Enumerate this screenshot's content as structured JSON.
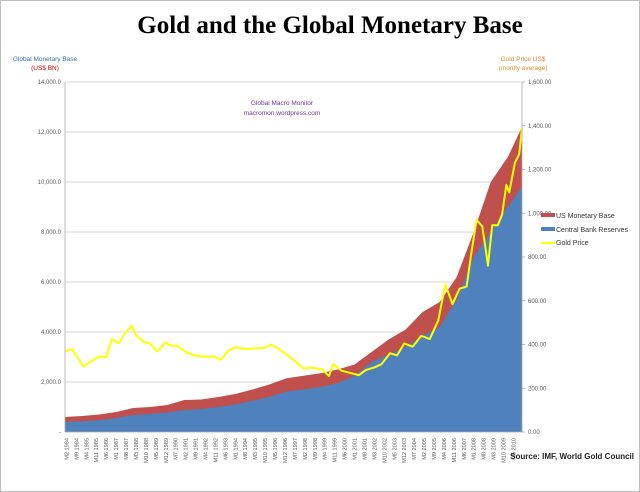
{
  "chart_data": {
    "type": "area",
    "title": "Gold and the Global Monetary Base",
    "watermark": [
      "Global Macro Monitor",
      "macromon.wordpress.com"
    ],
    "ylabel_left": [
      "Global Monetary Base",
      "(US$ BN)"
    ],
    "ylabel_right": [
      "Gold Price US$",
      "(montly average)"
    ],
    "ylim_left": [
      0,
      14000
    ],
    "ylim_right": [
      0,
      1600
    ],
    "y_ticks_left": [
      "-",
      "2,000.0",
      "4,000.0",
      "6,000.0",
      "8,000.0",
      "10,000.0",
      "12,000.0",
      "14,000.0"
    ],
    "y_ticks_right": [
      "0.00",
      "200.00",
      "400.00",
      "600.00",
      "800.00",
      "1,000.00",
      "1,200.00",
      "1,400.00",
      "1,600.00"
    ],
    "x_range": [
      "1984-01",
      "2010-11"
    ],
    "x_tick_labels": [
      "M2 1984",
      "M9 1984",
      "M4 1985",
      "M11 1985",
      "M6 1986",
      "M1 1987",
      "M8 1987",
      "M3 1988",
      "M10 1988",
      "M5 1989",
      "M12 1989",
      "M7 1990",
      "M2 1991",
      "M9 1991",
      "M4 1992",
      "M11 1992",
      "M6 1993",
      "M1 1994",
      "M8 1994",
      "M3 1995",
      "M10 1995",
      "M5 1996",
      "M12 1996",
      "M7 1997",
      "M2 1998",
      "M9 1998",
      "M4 1999",
      "M11 1999",
      "M6 2000",
      "M1 2001",
      "M8 2001",
      "M3 2002",
      "M10 2002",
      "M5 2003",
      "M12 2003",
      "M7 2004",
      "M2 2005",
      "M9 2005",
      "M4 2006",
      "M11 2006",
      "M6 2007",
      "M1 2008",
      "M8 2008",
      "M3 2009",
      "M10 2009",
      "M5 2010"
    ],
    "grid": true,
    "legend_placement": "right",
    "series": [
      {
        "name": "US Monetary Base",
        "kind": "stacked-area-top",
        "axis": "left",
        "color": "#c0504d",
        "points": [
          [
            "1984-01",
            600
          ],
          [
            "1985-01",
            640
          ],
          [
            "1986-01",
            700
          ],
          [
            "1987-01",
            800
          ],
          [
            "1988-01",
            960
          ],
          [
            "1989-01",
            1000
          ],
          [
            "1990-01",
            1080
          ],
          [
            "1991-01",
            1280
          ],
          [
            "1992-01",
            1300
          ],
          [
            "1993-01",
            1400
          ],
          [
            "1994-01",
            1520
          ],
          [
            "1995-01",
            1700
          ],
          [
            "1996-01",
            1900
          ],
          [
            "1997-01",
            2150
          ],
          [
            "1998-01",
            2250
          ],
          [
            "1999-01",
            2350
          ],
          [
            "2000-01",
            2500
          ],
          [
            "2001-01",
            2700
          ],
          [
            "2002-01",
            3200
          ],
          [
            "2003-01",
            3700
          ],
          [
            "2004-01",
            4100
          ],
          [
            "2005-01",
            4800
          ],
          [
            "2006-01",
            5200
          ],
          [
            "2007-01",
            6200
          ],
          [
            "2008-01",
            8000
          ],
          [
            "2009-01",
            10000
          ],
          [
            "2010-01",
            11000
          ],
          [
            "2010-11",
            12200
          ]
        ]
      },
      {
        "name": "Central Bank Reserves",
        "kind": "area",
        "axis": "left",
        "color": "#4f81bd",
        "points": [
          [
            "1984-01",
            400
          ],
          [
            "1985-01",
            430
          ],
          [
            "1986-01",
            470
          ],
          [
            "1987-01",
            560
          ],
          [
            "1988-01",
            680
          ],
          [
            "1989-01",
            720
          ],
          [
            "1990-01",
            780
          ],
          [
            "1991-01",
            880
          ],
          [
            "1992-01",
            920
          ],
          [
            "1993-01",
            1000
          ],
          [
            "1994-01",
            1100
          ],
          [
            "1995-01",
            1250
          ],
          [
            "1996-01",
            1400
          ],
          [
            "1997-01",
            1620
          ],
          [
            "1998-01",
            1700
          ],
          [
            "1999-01",
            1800
          ],
          [
            "2000-01",
            1950
          ],
          [
            "2001-01",
            2250
          ],
          [
            "2002-01",
            2800
          ],
          [
            "2003-01",
            3100
          ],
          [
            "2004-01",
            3400
          ],
          [
            "2005-01",
            3850
          ],
          [
            "2006-01",
            4200
          ],
          [
            "2007-01",
            5300
          ],
          [
            "2008-01",
            7000
          ],
          [
            "2009-01",
            8000
          ],
          [
            "2010-01",
            9000
          ],
          [
            "2010-11",
            9800
          ]
        ]
      },
      {
        "name": "Gold Price",
        "kind": "line",
        "axis": "right",
        "color": "#ffff00",
        "points": [
          [
            "1984-01",
            370
          ],
          [
            "1984-06",
            378
          ],
          [
            "1985-02",
            300
          ],
          [
            "1985-06",
            317
          ],
          [
            "1986-01",
            345
          ],
          [
            "1986-06",
            343
          ],
          [
            "1986-10",
            425
          ],
          [
            "1987-03",
            405
          ],
          [
            "1987-07",
            450
          ],
          [
            "1987-12",
            486
          ],
          [
            "1988-03",
            443
          ],
          [
            "1988-09",
            410
          ],
          [
            "1989-01",
            405
          ],
          [
            "1989-06",
            368
          ],
          [
            "1989-12",
            410
          ],
          [
            "1990-03",
            395
          ],
          [
            "1990-08",
            395
          ],
          [
            "1991-03",
            362
          ],
          [
            "1991-09",
            349
          ],
          [
            "1992-03",
            345
          ],
          [
            "1992-10",
            344
          ],
          [
            "1993-03",
            330
          ],
          [
            "1993-08",
            372
          ],
          [
            "1994-01",
            387
          ],
          [
            "1994-08",
            380
          ],
          [
            "1995-03",
            382
          ],
          [
            "1995-10",
            385
          ],
          [
            "1996-02",
            400
          ],
          [
            "1996-07",
            383
          ],
          [
            "1997-01",
            355
          ],
          [
            "1997-07",
            325
          ],
          [
            "1998-01",
            290
          ],
          [
            "1998-06",
            295
          ],
          [
            "1999-02",
            287
          ],
          [
            "1999-07",
            256
          ],
          [
            "1999-10",
            310
          ],
          [
            "2000-04",
            280
          ],
          [
            "2000-10",
            270
          ],
          [
            "2001-04",
            260
          ],
          [
            "2001-09",
            283
          ],
          [
            "2002-03",
            295
          ],
          [
            "2002-08",
            310
          ],
          [
            "2003-02",
            360
          ],
          [
            "2003-07",
            350
          ],
          [
            "2003-12",
            405
          ],
          [
            "2004-06",
            390
          ],
          [
            "2004-12",
            440
          ],
          [
            "2005-06",
            425
          ],
          [
            "2005-12",
            510
          ],
          [
            "2006-05",
            675
          ],
          [
            "2006-10",
            585
          ],
          [
            "2007-03",
            655
          ],
          [
            "2007-08",
            665
          ],
          [
            "2007-11",
            805
          ],
          [
            "2008-03",
            970
          ],
          [
            "2008-07",
            940
          ],
          [
            "2008-10",
            810
          ],
          [
            "2008-11",
            760
          ],
          [
            "2009-02",
            945
          ],
          [
            "2009-06",
            945
          ],
          [
            "2009-09",
            995
          ],
          [
            "2009-12",
            1130
          ],
          [
            "2010-02",
            1095
          ],
          [
            "2010-06",
            1230
          ],
          [
            "2010-09",
            1270
          ],
          [
            "2010-11",
            1390
          ]
        ]
      }
    ],
    "source": "Source:   IMF, World Gold Council"
  }
}
